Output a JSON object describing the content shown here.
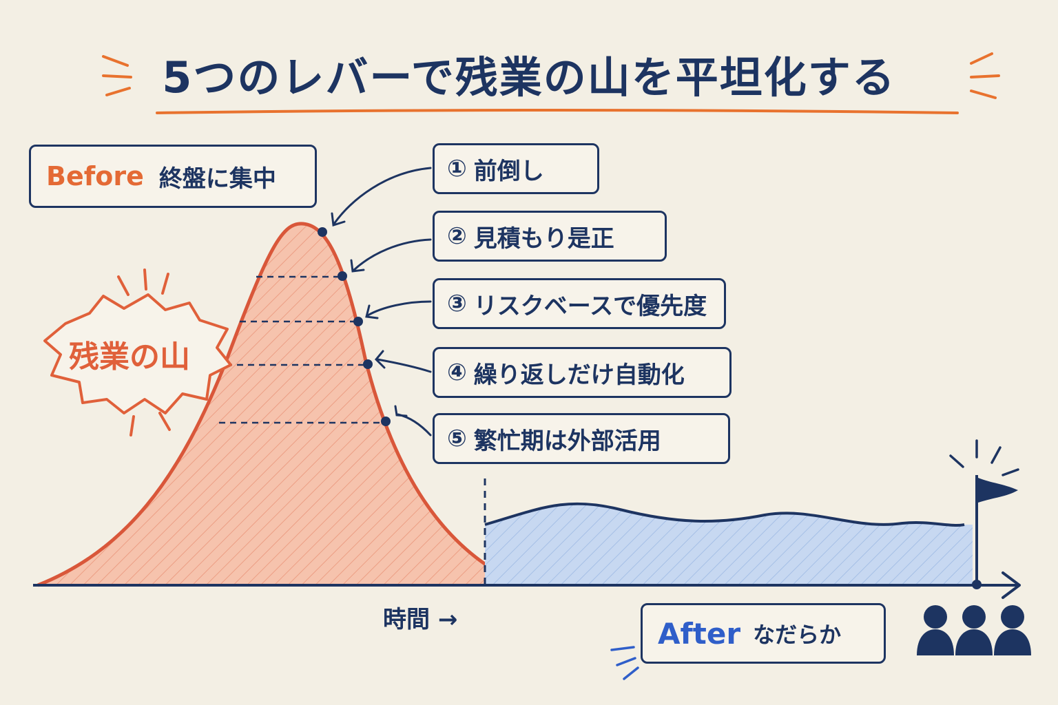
{
  "title": "5つのレバーで残業の山を平坦化する",
  "before": {
    "tag": "Before",
    "text": "終盤に集中"
  },
  "mountain_label": "残業の山",
  "levers": [
    {
      "number": "①",
      "label": "前倒し"
    },
    {
      "number": "②",
      "label": "見積もり是正"
    },
    {
      "number": "③",
      "label": "リスクベースで優先度"
    },
    {
      "number": "④",
      "label": "繰り返しだけ自動化"
    },
    {
      "number": "⑤",
      "label": "繁忙期は外部活用"
    }
  ],
  "time_label": "時間 →",
  "after": {
    "tag": "After",
    "text": "なだらか"
  },
  "colors": {
    "navy": "#1d3461",
    "orange": "#e8722e",
    "before_fill": "#f6c3ad",
    "before_line": "#d9573a",
    "after_fill": "#c4d6f1",
    "after_line": "#1d3461",
    "background": "#f3efe4"
  },
  "icons": [
    "flag-icon",
    "team-people-icon",
    "burst-icon"
  ]
}
